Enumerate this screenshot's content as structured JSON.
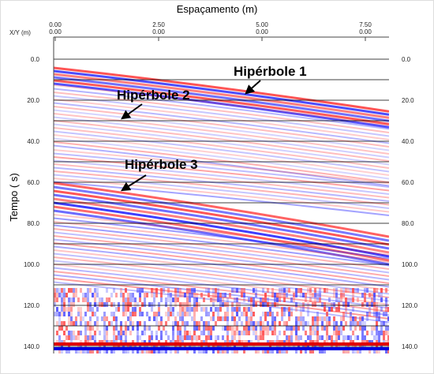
{
  "header": {
    "title": "Espaçamento (m)",
    "xy_label": "X/Y (m)"
  },
  "x_ticks": [
    {
      "top": "0.00",
      "bottom": "0.00"
    },
    {
      "top": "2.50",
      "bottom": "0.00"
    },
    {
      "top": "5.00",
      "bottom": "0.00"
    },
    {
      "top": "7.50",
      "bottom": "0.00"
    }
  ],
  "y_label": "Tempo (  s)",
  "y_ticks": [
    "0.0",
    "20.0",
    "40.0",
    "60.0",
    "80.0",
    "100.0",
    "120.0",
    "140.0"
  ],
  "annotations": [
    "Hipérbole 1",
    "Hipérbole 2",
    "Hipérbole 3"
  ]
}
